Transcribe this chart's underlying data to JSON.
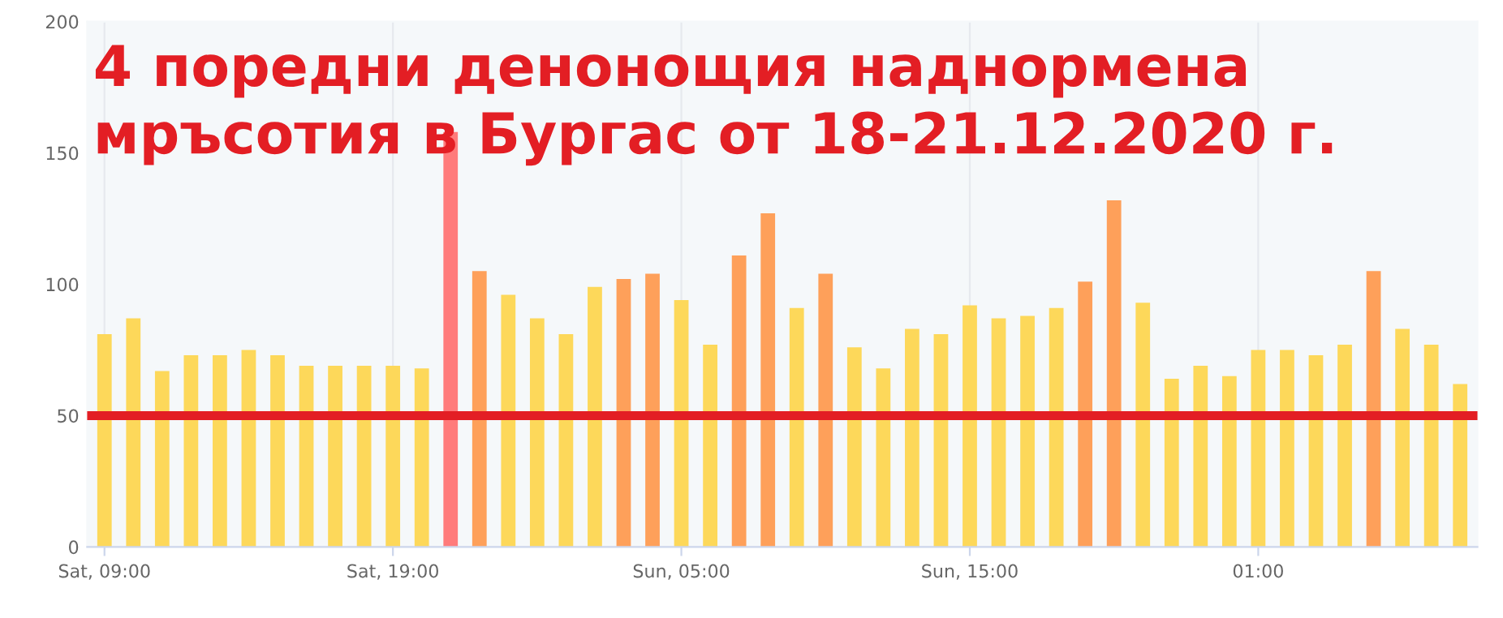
{
  "chart_data": {
    "type": "bar",
    "title": "4 поредни денонощия наднормена мръсотия в Бургас от 18-21.12.2020 г.",
    "categories": [
      "Sat, 09:00",
      null,
      null,
      null,
      null,
      null,
      null,
      null,
      null,
      null,
      "Sat, 19:00",
      null,
      null,
      null,
      null,
      null,
      null,
      null,
      null,
      null,
      "Sun, 05:00",
      null,
      null,
      null,
      null,
      null,
      null,
      null,
      null,
      null,
      "Sun, 15:00",
      null,
      null,
      null,
      null,
      null,
      null,
      null,
      null,
      null,
      "01:00",
      null,
      null,
      null,
      null,
      null,
      null,
      null
    ],
    "values": [
      81,
      87,
      67,
      73,
      73,
      75,
      73,
      69,
      69,
      69,
      69,
      68,
      158,
      105,
      96,
      87,
      81,
      99,
      102,
      104,
      94,
      77,
      111,
      127,
      91,
      104,
      76,
      68,
      83,
      81,
      92,
      87,
      88,
      91,
      101,
      132,
      93,
      64,
      69,
      65,
      75,
      75,
      73,
      77,
      105,
      83,
      77,
      62
    ],
    "colors": [
      "#fdd85a",
      "#fdd85a",
      "#fdd85a",
      "#fdd85a",
      "#fdd85a",
      "#fdd85a",
      "#fdd85a",
      "#fdd85a",
      "#fdd85a",
      "#fdd85a",
      "#fdd85a",
      "#fdd85a",
      "#ff7b7b",
      "#fea05a",
      "#fdd85a",
      "#fdd85a",
      "#fdd85a",
      "#fdd85a",
      "#fea05a",
      "#fea05a",
      "#fdd85a",
      "#fdd85a",
      "#fea05a",
      "#fea05a",
      "#fdd85a",
      "#fea05a",
      "#fdd85a",
      "#fdd85a",
      "#fdd85a",
      "#fdd85a",
      "#fdd85a",
      "#fdd85a",
      "#fdd85a",
      "#fdd85a",
      "#fea05a",
      "#fea05a",
      "#fdd85a",
      "#fdd85a",
      "#fdd85a",
      "#fdd85a",
      "#fdd85a",
      "#fdd85a",
      "#fdd85a",
      "#fdd85a",
      "#fea05a",
      "#fdd85a",
      "#fdd85a",
      "#fdd85a"
    ],
    "ylim": [
      0,
      200
    ],
    "yticks": [
      0,
      50,
      100,
      150,
      200
    ],
    "grid": "x",
    "ref_lines": [
      {
        "axis": "y",
        "value": 50,
        "color": "#e31e24"
      }
    ]
  }
}
